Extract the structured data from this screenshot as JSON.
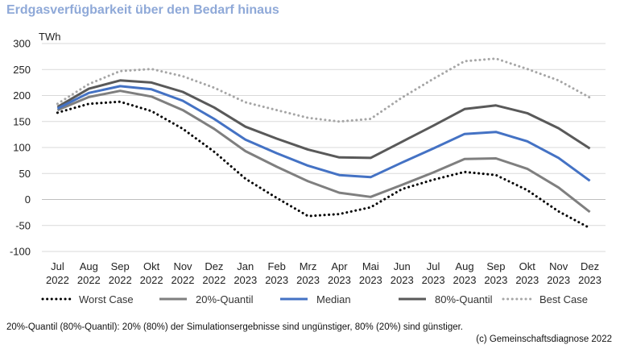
{
  "title": "Erdgasverfügbarkeit über den Bedarf hinaus",
  "footnote": "20%-Quantil (80%-Quantil): 20% (80%) der Simulationsergebnisse sind ungünstiger, 80% (20%) sind günstiger.",
  "source": "(c) Gemeinschaftsdiagnose 2022",
  "chart_data": {
    "type": "line",
    "title": "Erdgasverfügbarkeit über den Bedarf hinaus",
    "ylabel": "TWh",
    "xlabel": "",
    "ylim": [
      -100,
      300
    ],
    "yticks": [
      -100,
      -50,
      0,
      50,
      100,
      150,
      200,
      250,
      300
    ],
    "grid": true,
    "legend_position": "bottom",
    "categories": [
      [
        "Jul",
        "2022"
      ],
      [
        "Aug",
        "2022"
      ],
      [
        "Sep",
        "2022"
      ],
      [
        "Okt",
        "2022"
      ],
      [
        "Nov",
        "2022"
      ],
      [
        "Dez",
        "2022"
      ],
      [
        "Jan",
        "2023"
      ],
      [
        "Feb",
        "2023"
      ],
      [
        "Mrz",
        "2023"
      ],
      [
        "Apr",
        "2023"
      ],
      [
        "Mai",
        "2023"
      ],
      [
        "Jun",
        "2023"
      ],
      [
        "Jul",
        "2023"
      ],
      [
        "Aug",
        "2023"
      ],
      [
        "Sep",
        "2023"
      ],
      [
        "Okt",
        "2023"
      ],
      [
        "Nov",
        "2023"
      ],
      [
        "Dez",
        "2023"
      ]
    ],
    "series": [
      {
        "name": "Worst Case",
        "color": "#000000",
        "style": "dotted",
        "values": [
          167,
          184,
          188,
          170,
          136,
          92,
          40,
          3,
          -32,
          -28,
          -15,
          20,
          38,
          53,
          47,
          18,
          -23,
          -55
        ]
      },
      {
        "name": "20%-Quantil",
        "color": "#7F7F7F",
        "style": "solid",
        "values": [
          172,
          197,
          209,
          198,
          172,
          136,
          93,
          63,
          35,
          13,
          5,
          28,
          52,
          78,
          79,
          59,
          23,
          -24
        ]
      },
      {
        "name": "Median",
        "color": "#4472C4",
        "style": "solid",
        "values": [
          175,
          205,
          218,
          212,
          190,
          155,
          115,
          89,
          65,
          47,
          43,
          71,
          98,
          126,
          130,
          112,
          80,
          36
        ]
      },
      {
        "name": "80%-Quantil",
        "color": "#595959",
        "style": "solid",
        "values": [
          178,
          213,
          229,
          225,
          207,
          177,
          140,
          117,
          96,
          81,
          80,
          111,
          142,
          174,
          181,
          166,
          137,
          98
        ]
      },
      {
        "name": "Best Case",
        "color": "#A6A6A6",
        "style": "dotted",
        "values": [
          184,
          222,
          247,
          251,
          237,
          215,
          187,
          172,
          157,
          150,
          155,
          196,
          232,
          266,
          271,
          251,
          229,
          196
        ]
      }
    ]
  }
}
